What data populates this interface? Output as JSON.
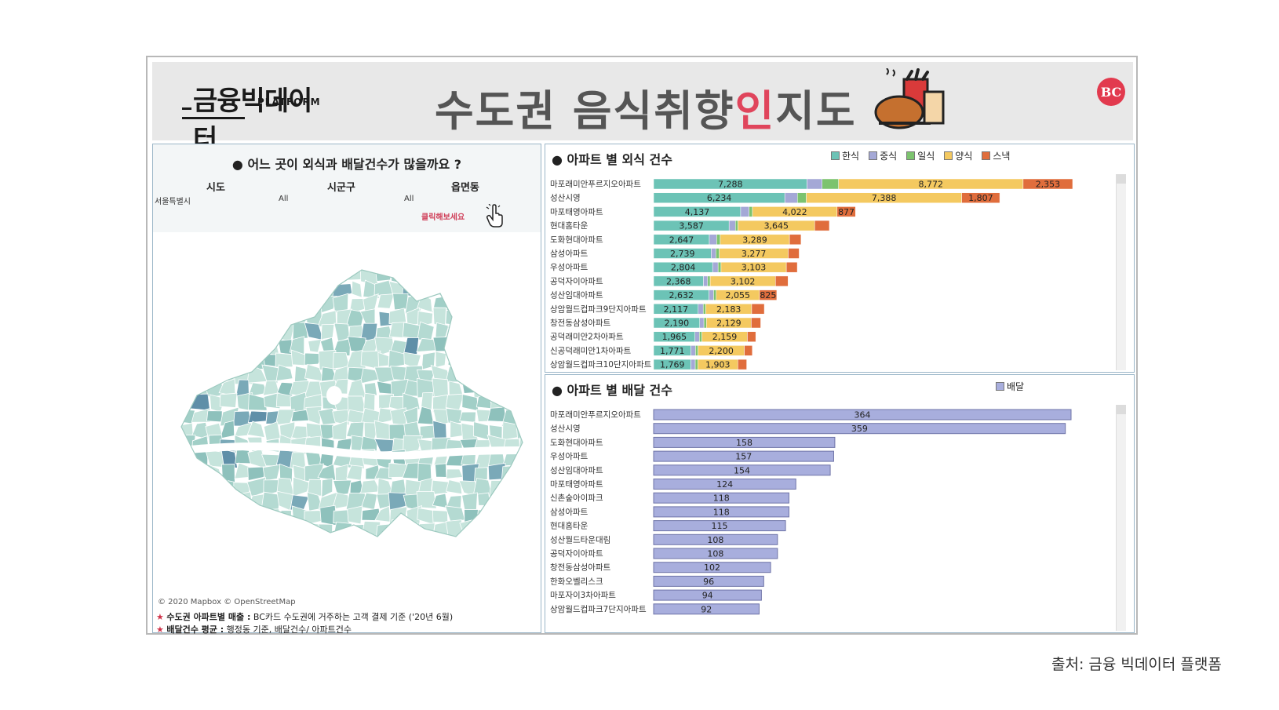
{
  "header": {
    "logo_main": "금융빅데이터",
    "logo_sub": "PLATFORM",
    "title_pre": "수도권 음식취향",
    "title_highlight": "인",
    "title_post": "지도",
    "bc_logo": "BC",
    "brand_color": "#e23a4e"
  },
  "left": {
    "question": "● 어느 곳이 외식과 배달건수가 많을까요 ?",
    "filters": [
      {
        "label": "시도",
        "value": "서울특별시"
      },
      {
        "label": "시군구",
        "value": "All"
      },
      {
        "label": "읍면동",
        "value": "All"
      }
    ],
    "click_hint": "클릭해보세요",
    "map_credit": "© 2020 Mapbox © OpenStreetMap",
    "notes": [
      {
        "star": "★",
        "bold": "수도권 아파트별 매출 :",
        "text": " BC카드 수도권에 거주하는 고객 결제 기준 ('20년 6월)"
      },
      {
        "star": "★",
        "bold": "배달건수 평균 :",
        "text": " 행정동 기준, 배달건수/ 아파트건수"
      }
    ]
  },
  "source": "출처: 금융 빅데이터 플랫폼",
  "chart_data": [
    {
      "type": "bar",
      "orientation": "horizontal",
      "stacked": true,
      "title": "● 아파트 별 외식 건수",
      "legend_position": "top-right",
      "categories": [
        "마포래미안푸르지오아파트",
        "성산시영",
        "마포태영아파트",
        "현대홈타운",
        "도화현대아파트",
        "삼성아파트",
        "우성아파트",
        "공덕자이아파트",
        "성산임대아파트",
        "상암월드컵파크9단지아파트",
        "창전동삼성아파트",
        "공덕래미안2차아파트",
        "신공덕래미안1차아파트",
        "상암월드컵파크10단지아파트"
      ],
      "series": [
        {
          "name": "한식",
          "color": "#6cc3b6",
          "values": [
            7288,
            6234,
            4137,
            3587,
            2647,
            2739,
            2804,
            2368,
            2632,
            2117,
            2190,
            1965,
            1771,
            1769
          ]
        },
        {
          "name": "중식",
          "color": "#a4a8d6",
          "values": [
            720,
            600,
            400,
            300,
            350,
            220,
            260,
            200,
            220,
            240,
            200,
            210,
            220,
            210
          ]
        },
        {
          "name": "일식",
          "color": "#7cc36e",
          "values": [
            780,
            420,
            160,
            120,
            170,
            160,
            140,
            120,
            120,
            120,
            120,
            120,
            120,
            120
          ]
        },
        {
          "name": "양식",
          "color": "#f4c960",
          "values": [
            8772,
            7388,
            4022,
            3645,
            3289,
            3277,
            3103,
            3102,
            2055,
            2183,
            2129,
            2159,
            2200,
            1903
          ]
        },
        {
          "name": "스낵",
          "color": "#e06d3c",
          "values": [
            2353,
            1807,
            877,
            700,
            550,
            520,
            520,
            600,
            825,
            600,
            450,
            400,
            380,
            420
          ]
        }
      ],
      "value_labels": {
        "한식": [
          "7,288",
          "6,234",
          "4,137",
          "3,587",
          "2,647",
          "2,739",
          "2,804",
          "2,368",
          "2,632",
          "2,117",
          "2,190",
          "1,965",
          "1,771",
          "1,769"
        ],
        "양식": [
          "8,772",
          "7,388",
          "4,022",
          "3,645",
          "3,289",
          "3,277",
          "3,103",
          "3,102",
          "2,055",
          "2,183",
          "2,129",
          "2,159",
          "2,200",
          "1,903"
        ],
        "스낵": [
          "2,353",
          "1,807",
          "877",
          "",
          "",
          "",
          "",
          "",
          "825",
          "",
          "",
          "",
          "",
          ""
        ]
      }
    },
    {
      "type": "bar",
      "orientation": "horizontal",
      "title": "● 아파트 별 배달 건수",
      "legend_position": "top-right",
      "series_name": "배달",
      "color": "#a8aedd",
      "categories": [
        "마포래미안푸르지오아파트",
        "성산시영",
        "도화현대아파트",
        "우성아파트",
        "성산임대아파트",
        "마포태영아파트",
        "신촌숲아이파크",
        "삼성아파트",
        "현대홈타운",
        "성산월드타운대림",
        "공덕자이아파트",
        "창전동삼성아파트",
        "한화오벨리스크",
        "마포자이3차아파트",
        "상암월드컵파크7단지아파트"
      ],
      "values": [
        364,
        359,
        158,
        157,
        154,
        124,
        118,
        118,
        115,
        108,
        108,
        102,
        96,
        94,
        92
      ]
    }
  ],
  "map_palette": [
    "#c6e4dc",
    "#b4dad2",
    "#a1cfc7",
    "#8ec1bc",
    "#7aa9b8",
    "#5f8fa8"
  ]
}
